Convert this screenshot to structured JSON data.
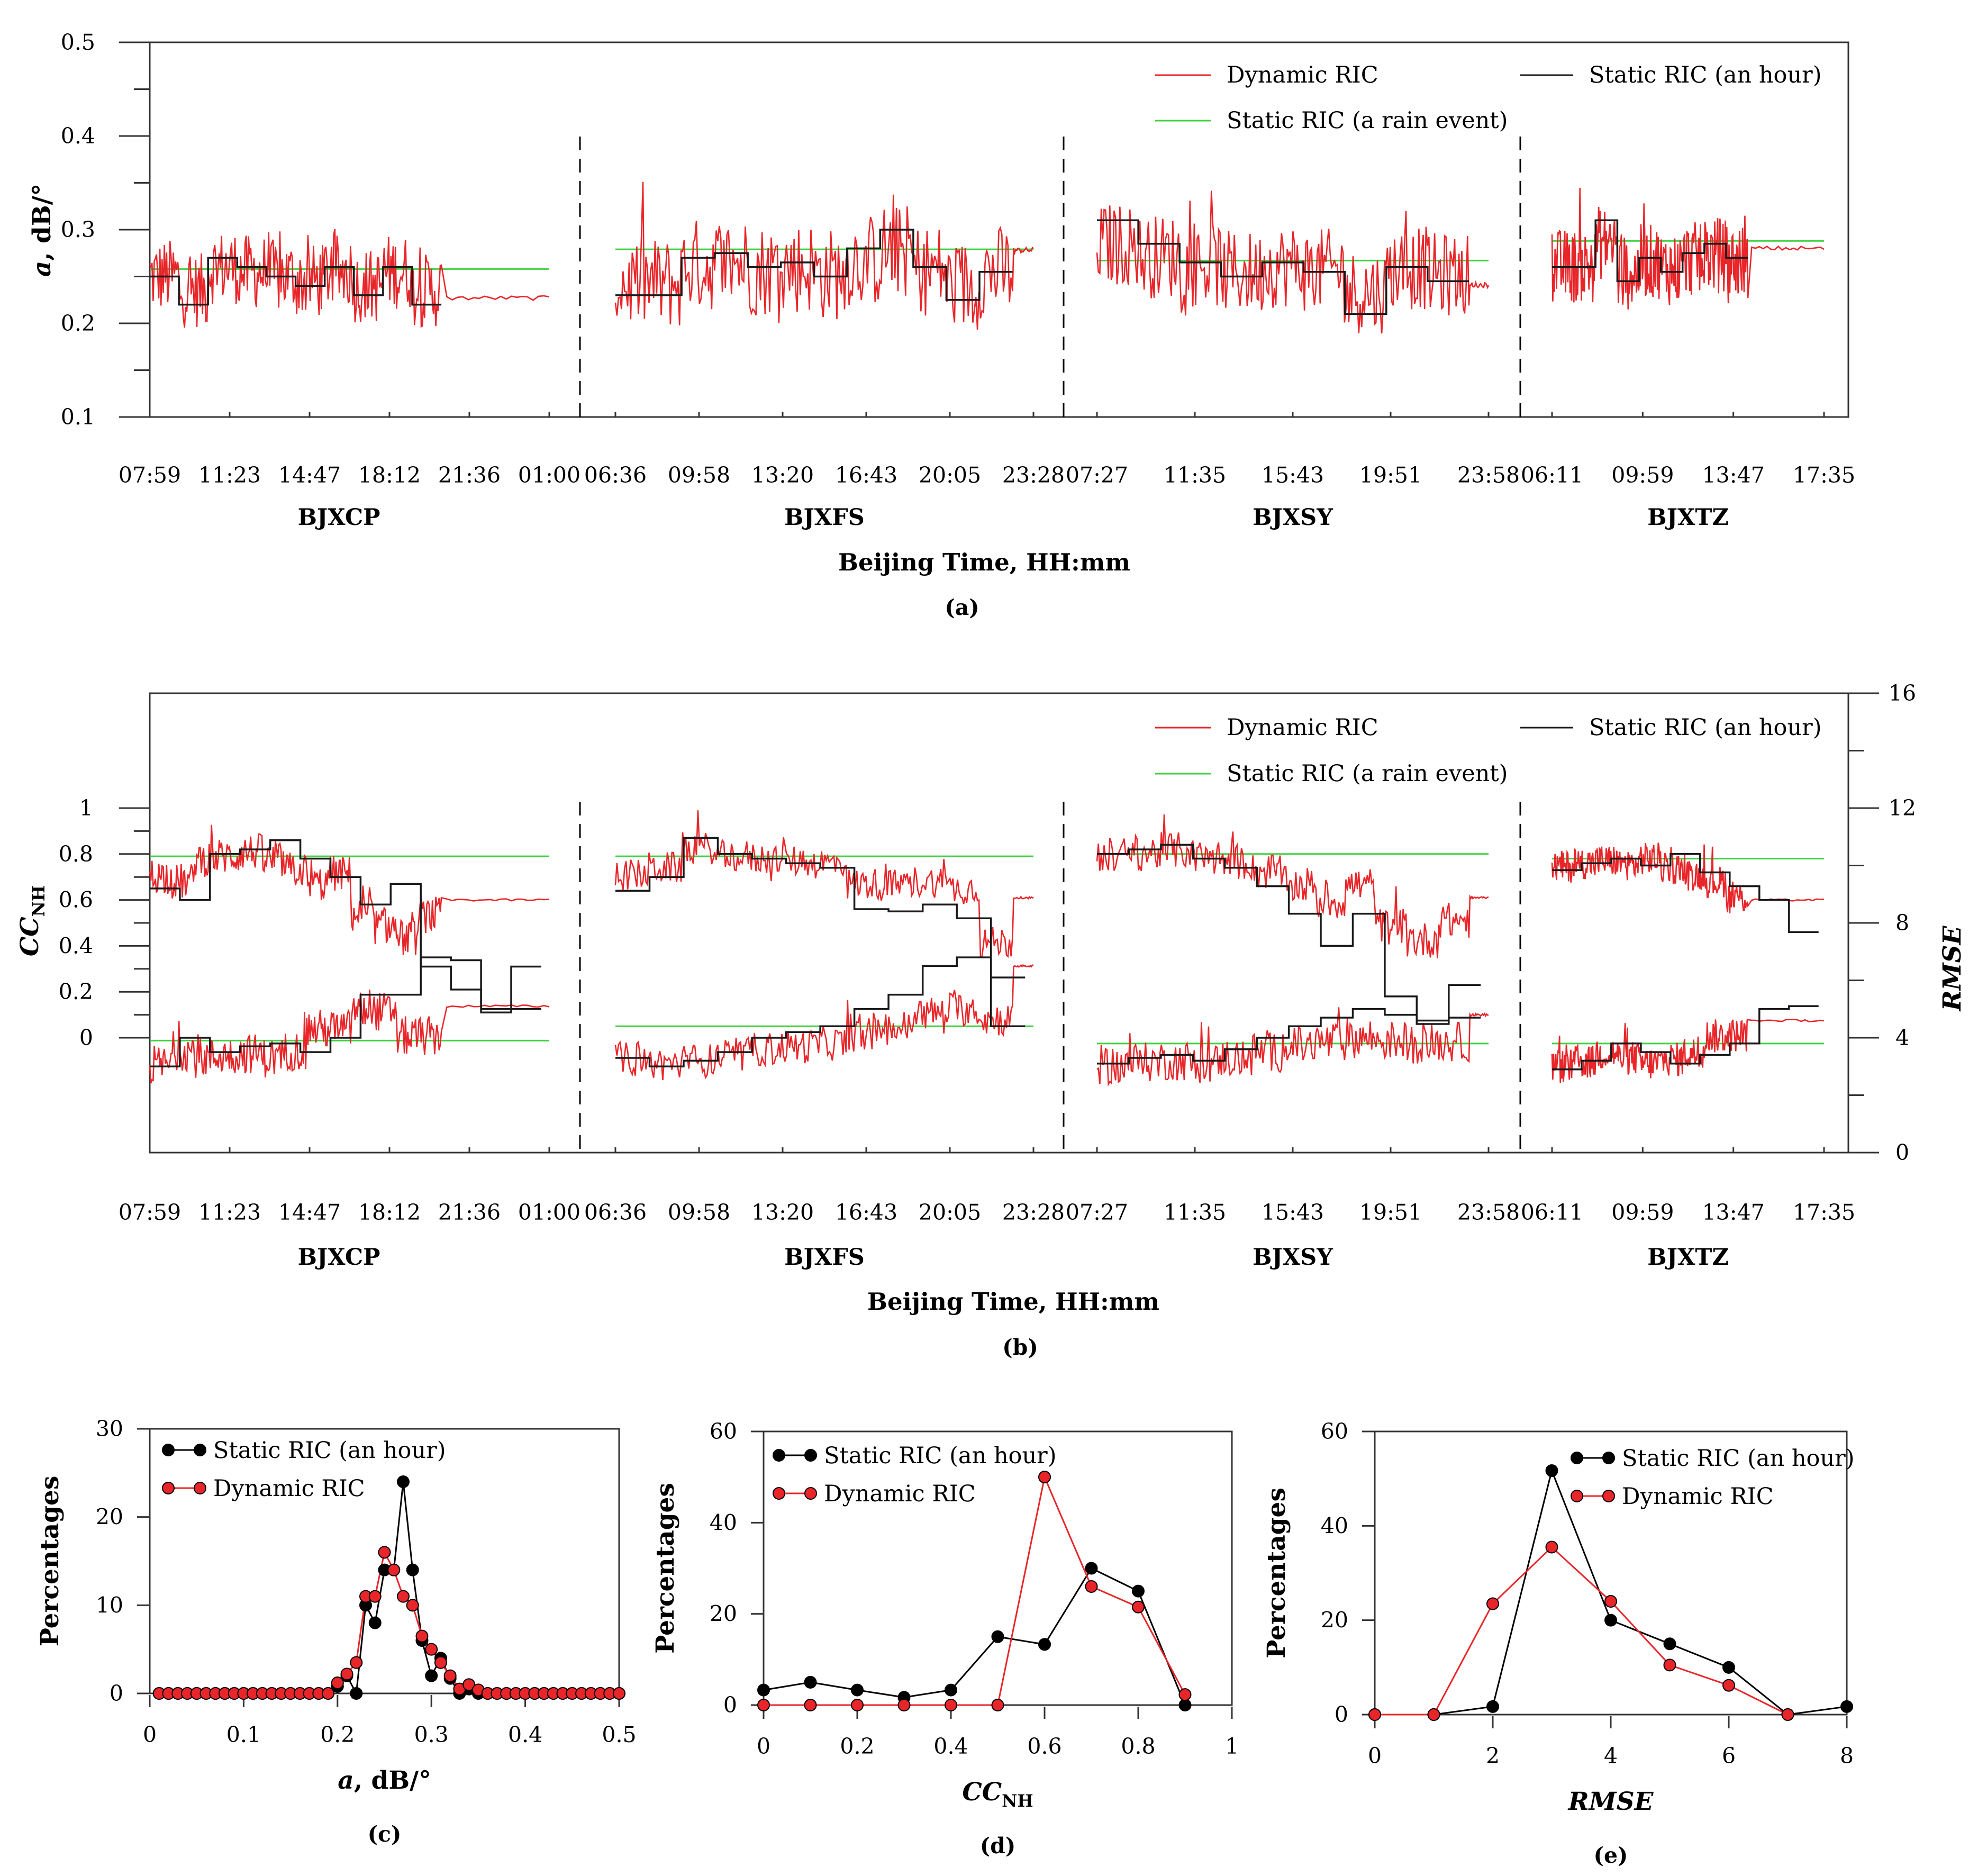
{
  "chart_data": [
    {
      "panel": "a",
      "type": "line",
      "caption": "(a)",
      "ylabel_var": "a",
      "ylabel_unit": ", dB/°",
      "xlabel": "Beijing Time, HH:mm",
      "ylim": [
        0.1,
        0.5
      ],
      "yticks": [
        "0.1",
        "0.2",
        "0.3",
        "0.4",
        "0.5"
      ],
      "legend": {
        "dynamic": "Dynamic RIC",
        "static_hour": "Static RIC (an hour)",
        "static_event": "Static RIC (a rain event)"
      },
      "colors": {
        "dynamic": "#e8262a",
        "static_hour": "#1a1a1a",
        "static_event": "#3fd23f"
      },
      "segments": [
        {
          "name": "BJXCP",
          "time_labels": [
            "07:59",
            "11:23",
            "14:47",
            "18:12",
            "21:36",
            "01:00"
          ],
          "event_value": 0.258,
          "hour_values": [
            0.25,
            0.22,
            0.27,
            0.26,
            0.25,
            0.24,
            0.26,
            0.23,
            0.26,
            0.22
          ],
          "dynamic_mean": 0.25,
          "dynamic_amp": 0.04,
          "tail_value": 0.227
        },
        {
          "name": "BJXFS",
          "time_labels": [
            "06:36",
            "09:58",
            "13:20",
            "16:43",
            "20:05",
            "23:28"
          ],
          "event_value": 0.279,
          "hour_values": [
            0.23,
            0.23,
            0.27,
            0.275,
            0.26,
            0.265,
            0.25,
            0.28,
            0.3,
            0.26,
            0.225,
            0.255
          ],
          "dynamic_mean": 0.255,
          "dynamic_amp": 0.05,
          "tail_value": 0.278
        },
        {
          "name": "BJXSY",
          "time_labels": [
            "07:27",
            "11:35",
            "15:43",
            "19:51",
            "23:58"
          ],
          "event_value": 0.267,
          "hour_values": [
            0.31,
            0.285,
            0.265,
            0.25,
            0.265,
            0.255,
            0.21,
            0.26,
            0.245
          ],
          "dynamic_mean": 0.258,
          "dynamic_amp": 0.045,
          "tail_value": 0.241
        },
        {
          "name": "BJXTZ",
          "time_labels": [
            "06:11",
            "09:59",
            "13:47",
            "17:35"
          ],
          "event_value": 0.288,
          "hour_values": [
            0.26,
            0.26,
            0.31,
            0.245,
            0.27,
            0.255,
            0.275,
            0.285,
            0.27
          ],
          "dynamic_mean": 0.262,
          "dynamic_amp": 0.04,
          "tail_value": 0.28
        }
      ]
    },
    {
      "panel": "b",
      "type": "line",
      "caption": "(b)",
      "ylabel_left_main": "CC",
      "ylabel_left_sub": "NH",
      "ylabel_right": "RMSE",
      "xlabel": "Beijing Time, HH:mm",
      "ylim_left": [
        -0.5,
        1.5
      ],
      "yticks_left": [
        "0",
        "0.2",
        "0.4",
        "0.6",
        "0.8",
        "1"
      ],
      "ylim_right": [
        0,
        16
      ],
      "yticks_right": [
        "0",
        "4",
        "8",
        "12",
        "16"
      ],
      "legend": {
        "dynamic": "Dynamic RIC",
        "static_hour": "Static RIC (an hour)",
        "static_event": "Static RIC (a rain event)"
      },
      "segments": [
        {
          "name": "BJXCP",
          "time_labels": [
            "07:59",
            "11:23",
            "14:47",
            "18:12",
            "21:36",
            "01:00"
          ],
          "cc_event": 0.79,
          "cc_hour": [
            0.65,
            0.6,
            0.8,
            0.82,
            0.86,
            0.78,
            0.7,
            0.58,
            0.67,
            0.31,
            0.21,
            0.11,
            0.31
          ],
          "cc_dyn_mean": 0.76,
          "cc_dyn_amp": 0.08,
          "cc_tail": 0.6,
          "rmse_event": 3.9,
          "rmse_hour": [
            3,
            4,
            3.5,
            3.7,
            3.8,
            3.5,
            4,
            5.5,
            5.5,
            6.8,
            6.7,
            5,
            5
          ],
          "rmse_dyn_mean": 3.1,
          "rmse_dyn_amp": 0.7,
          "rmse_tail": 5.1
        },
        {
          "name": "BJXFS",
          "time_labels": [
            "06:36",
            "09:58",
            "13:20",
            "16:43",
            "20:05",
            "23:28"
          ],
          "cc_event": 0.79,
          "cc_hour": [
            0.64,
            0.7,
            0.87,
            0.8,
            0.78,
            0.76,
            0.74,
            0.56,
            0.55,
            0.58,
            0.52,
            0.05
          ],
          "cc_dyn_mean": 0.78,
          "cc_dyn_amp": 0.07,
          "cc_tail": 0.61,
          "rmse_event": 4.4,
          "rmse_hour": [
            3.3,
            3,
            3.2,
            3.5,
            4,
            4.2,
            4.4,
            5,
            5.5,
            6.5,
            6.8,
            6.1
          ],
          "rmse_dyn_mean": 3.2,
          "rmse_dyn_amp": 0.6,
          "rmse_tail": 6.5
        },
        {
          "name": "BJXSY",
          "time_labels": [
            "07:27",
            "11:35",
            "15:43",
            "19:51",
            "23:58"
          ],
          "cc_event": 0.8,
          "cc_hour": [
            0.8,
            0.82,
            0.84,
            0.78,
            0.74,
            0.66,
            0.54,
            0.4,
            0.54,
            0.18,
            0.06,
            0.23
          ],
          "cc_dyn_mean": 0.79,
          "cc_dyn_amp": 0.08,
          "cc_tail": 0.61,
          "rmse_event": 3.8,
          "rmse_hour": [
            3.1,
            3.3,
            3.4,
            3.2,
            3.6,
            4,
            4.4,
            4.7,
            5,
            4.8,
            4.6,
            4.7
          ],
          "rmse_dyn_mean": 3,
          "rmse_dyn_amp": 0.7,
          "rmse_tail": 4.8
        },
        {
          "name": "BJXTZ",
          "time_labels": [
            "06:11",
            "09:59",
            "13:47",
            "17:35"
          ],
          "cc_event": 0.78,
          "cc_hour": [
            0.73,
            0.76,
            0.78,
            0.75,
            0.8,
            0.72,
            0.66,
            0.6,
            0.46
          ],
          "cc_dyn_mean": 0.76,
          "cc_dyn_amp": 0.07,
          "cc_tail": 0.6,
          "rmse_event": 3.8,
          "rmse_hour": [
            2.9,
            3.2,
            3.8,
            3.5,
            3.1,
            3.4,
            3.8,
            5,
            5.1
          ],
          "rmse_dyn_mean": 3.1,
          "rmse_dyn_amp": 0.6,
          "rmse_tail": 4.6
        }
      ]
    },
    {
      "panel": "c",
      "type": "line",
      "caption": "(c)",
      "xlabel_var": "a",
      "xlabel_unit": ", dB/°",
      "ylabel": "Percentages",
      "xlim": [
        0,
        0.5
      ],
      "ylim": [
        0,
        30
      ],
      "xticks": [
        "0",
        "0.1",
        "0.2",
        "0.3",
        "0.4",
        "0.5"
      ],
      "yticks": [
        "0",
        "10",
        "20",
        "30"
      ],
      "x": [
        0.01,
        0.02,
        0.03,
        0.04,
        0.05,
        0.06,
        0.07,
        0.08,
        0.09,
        0.1,
        0.11,
        0.12,
        0.13,
        0.14,
        0.15,
        0.16,
        0.17,
        0.18,
        0.19,
        0.2,
        0.21,
        0.22,
        0.23,
        0.24,
        0.25,
        0.26,
        0.27,
        0.28,
        0.29,
        0.3,
        0.31,
        0.32,
        0.33,
        0.34,
        0.35,
        0.36,
        0.37,
        0.38,
        0.39,
        0.4,
        0.41,
        0.42,
        0.43,
        0.44,
        0.45,
        0.46,
        0.47,
        0.48,
        0.49,
        0.5
      ],
      "series": [
        {
          "name": "Static RIC (an hour)",
          "color": "#000000",
          "values": [
            0,
            0,
            0,
            0,
            0,
            0,
            0,
            0,
            0,
            0,
            0,
            0,
            0,
            0,
            0,
            0,
            0,
            0,
            0,
            0.8,
            2,
            0,
            10,
            8,
            14,
            14,
            24,
            14,
            6,
            2,
            4,
            1.7,
            0,
            0.5,
            0,
            0,
            0,
            0,
            0,
            0,
            0,
            0,
            0,
            0,
            0,
            0,
            0,
            0,
            0,
            0
          ]
        },
        {
          "name": "Dynamic RIC",
          "color": "#e8262a",
          "values": [
            0,
            0,
            0,
            0,
            0,
            0,
            0,
            0,
            0,
            0,
            0,
            0,
            0,
            0,
            0,
            0,
            0,
            0,
            0,
            1.2,
            2.2,
            3.5,
            11,
            11,
            16,
            14,
            11,
            10,
            6.5,
            5,
            3.5,
            2,
            0.5,
            1,
            0.4,
            0,
            0,
            0,
            0,
            0,
            0,
            0,
            0,
            0,
            0,
            0,
            0,
            0,
            0,
            0
          ]
        }
      ]
    },
    {
      "panel": "d",
      "type": "line",
      "caption": "(d)",
      "xlabel_main": "CC",
      "xlabel_sub": "NH",
      "ylabel": "Percentages",
      "xlim": [
        0,
        1
      ],
      "ylim": [
        0,
        60
      ],
      "xticks": [
        "0",
        "0.2",
        "0.4",
        "0.6",
        "0.8",
        "1"
      ],
      "yticks": [
        "0",
        "20",
        "40",
        "60"
      ],
      "x": [
        0,
        0.1,
        0.2,
        0.3,
        0.4,
        0.5,
        0.6,
        0.7,
        0.8,
        0.9
      ],
      "series": [
        {
          "name": "Static RIC (an hour)",
          "color": "#000000",
          "values": [
            3.3,
            5,
            3.3,
            1.7,
            3.3,
            15,
            13.3,
            30,
            25,
            0
          ]
        },
        {
          "name": "Dynamic RIC",
          "color": "#e8262a",
          "values": [
            0,
            0,
            0,
            0,
            0,
            0,
            50,
            26,
            21.5,
            2.3
          ]
        }
      ]
    },
    {
      "panel": "e",
      "type": "line",
      "caption": "(e)",
      "xlabel": "RMSE",
      "ylabel": "Percentages",
      "xlim": [
        0,
        8
      ],
      "ylim": [
        0,
        60
      ],
      "xticks": [
        "0",
        "2",
        "4",
        "6",
        "8"
      ],
      "yticks": [
        "0",
        "20",
        "40",
        "60"
      ],
      "x": [
        0,
        1,
        2,
        3,
        4,
        5,
        6,
        7,
        8
      ],
      "series": [
        {
          "name": "Static RIC (an hour)",
          "color": "#000000",
          "values": [
            0,
            0,
            1.7,
            51.7,
            20,
            15,
            10,
            0,
            1.7
          ]
        },
        {
          "name": "Dynamic RIC",
          "color": "#e8262a",
          "values": [
            0,
            0,
            23.5,
            35.5,
            24,
            10.5,
            6.2,
            0,
            null
          ]
        }
      ]
    }
  ]
}
